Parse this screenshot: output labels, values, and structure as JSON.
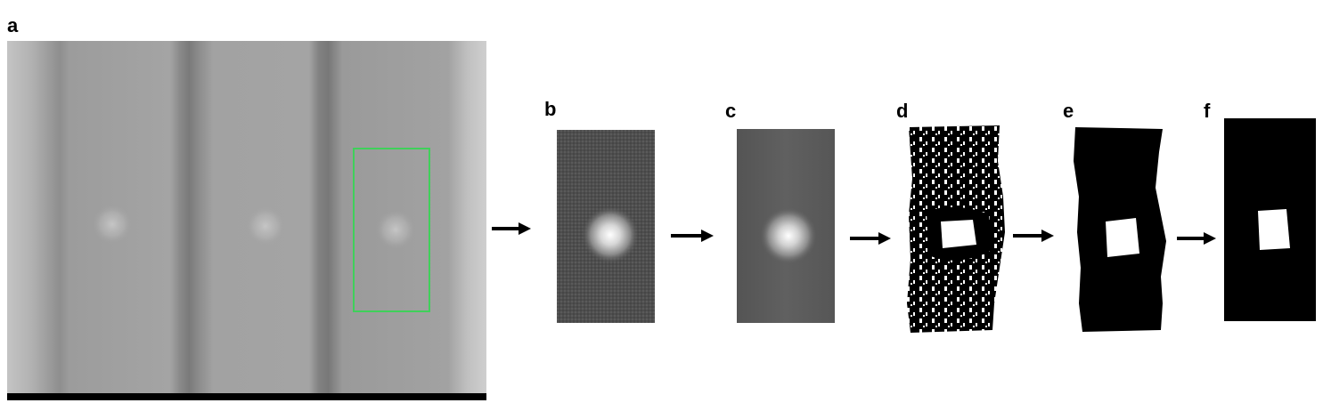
{
  "labels": {
    "a": "a",
    "b": "b",
    "c": "c",
    "d": "d",
    "e": "e",
    "f": "f"
  },
  "colors": {
    "roi_box": "#3fd05a",
    "background": "#ffffff",
    "arrow": "#000000"
  }
}
